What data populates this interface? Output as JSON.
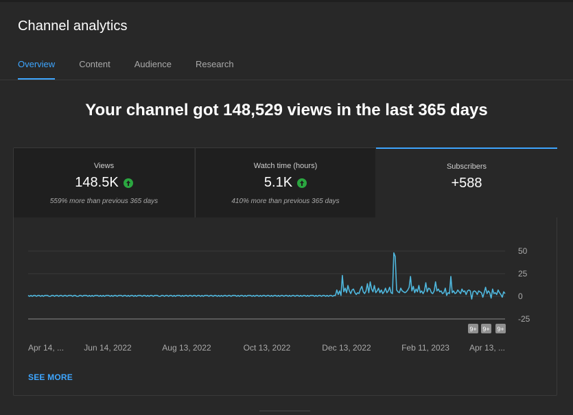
{
  "header": {
    "title": "Channel analytics"
  },
  "tabs": [
    {
      "label": "Overview",
      "active": true
    },
    {
      "label": "Content",
      "active": false
    },
    {
      "label": "Audience",
      "active": false
    },
    {
      "label": "Research",
      "active": false
    }
  ],
  "headline": "Your channel got 148,529 views in the last 365 days",
  "metrics": [
    {
      "label": "Views",
      "value": "148.5K",
      "trend_icon": "arrow-up-circle-icon",
      "note": "559% more than previous 365 days"
    },
    {
      "label": "Watch time (hours)",
      "value": "5.1K",
      "trend_icon": "arrow-up-circle-icon",
      "note": "410% more than previous 365 days"
    },
    {
      "label": "Subscribers",
      "value": "+588",
      "selected": true
    }
  ],
  "colors": {
    "accent": "#3ea6ff",
    "line": "#4fb7dd",
    "positive": "#2ba640",
    "background": "#282828"
  },
  "chart_data": {
    "type": "line",
    "series": [
      {
        "name": "",
        "values": [
          1,
          0,
          1,
          0,
          1,
          1,
          0,
          1,
          1,
          0,
          1,
          0,
          1,
          1,
          1,
          0,
          0,
          1,
          1,
          0,
          1,
          1,
          0,
          1,
          1,
          0,
          1,
          1,
          0,
          1,
          1,
          1,
          0,
          1,
          1,
          0,
          0,
          1,
          1,
          0,
          1,
          1,
          1,
          0,
          1,
          0,
          1,
          0,
          1,
          1,
          1,
          0,
          1,
          0,
          1,
          0,
          1,
          1,
          1,
          0,
          1,
          0,
          1,
          1,
          0,
          1,
          1,
          1,
          0,
          1,
          1,
          0,
          1,
          0,
          1,
          1,
          0,
          1,
          0,
          1,
          1,
          1,
          0,
          1,
          1,
          0,
          1,
          0,
          1,
          1,
          0,
          1,
          1,
          1,
          0,
          0,
          1,
          1,
          0,
          1,
          1,
          0,
          1,
          1,
          0,
          1,
          0,
          1,
          1,
          1,
          0,
          1,
          0,
          1,
          1,
          0,
          1,
          1,
          0,
          1,
          1,
          0,
          1,
          1,
          0,
          1,
          0,
          1,
          1,
          1,
          0,
          1,
          1,
          0,
          1,
          1,
          0,
          1,
          0,
          1,
          0,
          1,
          1,
          0,
          1,
          1,
          0,
          1,
          1,
          1,
          0,
          1,
          0,
          1,
          1,
          0,
          1,
          0,
          1,
          1,
          1,
          0,
          1,
          0,
          1,
          1,
          0,
          1,
          0,
          1,
          1,
          0,
          1,
          1,
          0,
          1,
          0,
          1,
          1,
          0,
          1,
          0,
          1,
          1,
          0,
          1,
          1,
          0,
          1,
          0,
          1,
          1,
          0,
          1,
          1,
          0,
          1,
          0,
          1,
          1,
          0,
          1,
          0,
          1,
          1,
          1,
          0,
          1,
          0,
          1,
          1,
          0,
          1,
          1,
          0,
          1,
          0,
          1,
          1,
          0,
          1,
          1,
          7,
          2,
          6,
          1,
          23,
          5,
          9,
          4,
          12,
          6,
          3,
          7,
          8,
          4,
          2,
          4,
          3,
          8,
          11,
          5,
          3,
          6,
          14,
          4,
          16,
          8,
          5,
          12,
          4,
          6,
          9,
          4,
          7,
          3,
          5,
          9,
          4,
          6,
          10,
          4,
          3,
          48,
          44,
          7,
          5,
          4,
          9,
          6,
          5,
          4,
          5,
          7,
          10,
          22,
          6,
          11,
          4,
          8,
          5,
          12,
          4,
          6,
          3,
          6,
          15,
          5,
          9,
          8,
          4,
          3,
          6,
          16,
          6,
          8,
          5,
          6,
          3,
          4,
          9,
          1,
          4,
          3,
          22,
          4,
          6,
          3,
          4,
          7,
          5,
          3,
          8,
          5,
          6,
          2,
          6,
          7,
          6,
          -3,
          5,
          6,
          5,
          2,
          6,
          5,
          4,
          -1,
          4,
          10,
          3,
          6,
          4,
          -2,
          8,
          3,
          4,
          2,
          7,
          4,
          2,
          -1,
          5,
          3
        ]
      }
    ],
    "x_tick_labels": [
      "Apr 14, ...",
      "Jun 14, 2022",
      "Aug 13, 2022",
      "Oct 13, 2022",
      "Dec 13, 2022",
      "Feb 11, 2023",
      "Apr 13, ..."
    ],
    "y_tick_labels": [
      "50",
      "25",
      "0",
      "-25"
    ],
    "ylim": [
      -25,
      50
    ],
    "grid": true,
    "markers": [
      {
        "label": "9+",
        "icon": "event-marker-icon"
      },
      {
        "label": "9+",
        "icon": "event-marker-icon"
      },
      {
        "label": "9+",
        "icon": "event-marker-icon"
      }
    ]
  },
  "footer": {
    "see_more_label": "SEE MORE"
  }
}
